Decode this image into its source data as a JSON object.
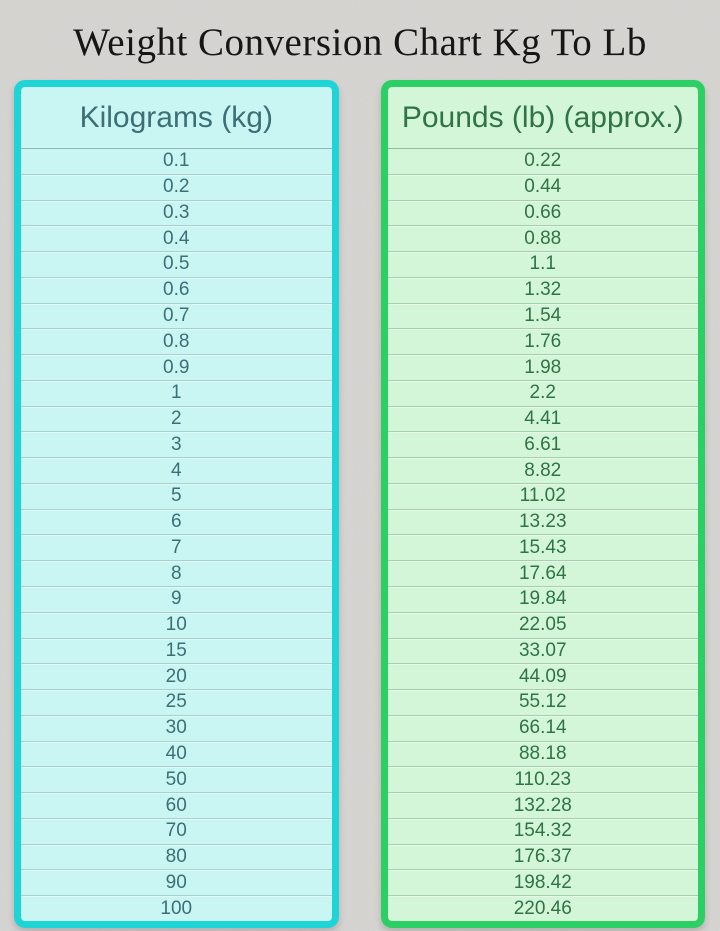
{
  "title": "Weight Conversion Chart Kg To Lb",
  "colors": {
    "page_background": "#d8d6d3",
    "title_text": "#161616",
    "kg_border": "#1fd4d6",
    "kg_background": "#c9f6f3",
    "kg_text": "#3c7076",
    "lb_border": "#2bcf63",
    "lb_background": "#d3f6d9",
    "lb_text": "#2f7347"
  },
  "chart_data": {
    "type": "table",
    "title": "Weight Conversion Chart Kg To Lb",
    "columns": [
      "Kilograms (kg)",
      "Pounds (lb) (approx.)"
    ],
    "series": [
      {
        "name": "Kilograms (kg)",
        "values": [
          "0.1",
          "0.2",
          "0.3",
          "0.4",
          "0.5",
          "0.6",
          "0.7",
          "0.8",
          "0.9",
          "1",
          "2",
          "3",
          "4",
          "5",
          "6",
          "7",
          "8",
          "9",
          "10",
          "15",
          "20",
          "25",
          "30",
          "40",
          "50",
          "60",
          "70",
          "80",
          "90",
          "100"
        ]
      },
      {
        "name": "Pounds (lb) (approx.)",
        "values": [
          "0.22",
          "0.44",
          "0.66",
          "0.88",
          "1.1",
          "1.32",
          "1.54",
          "1.76",
          "1.98",
          "2.2",
          "4.41",
          "6.61",
          "8.82",
          "11.02",
          "13.23",
          "15.43",
          "17.64",
          "19.84",
          "22.05",
          "33.07",
          "44.09",
          "55.12",
          "66.14",
          "88.18",
          "110.23",
          "132.28",
          "154.32",
          "176.37",
          "198.42",
          "220.46"
        ]
      }
    ],
    "rows": [
      [
        "0.1",
        "0.22"
      ],
      [
        "0.2",
        "0.44"
      ],
      [
        "0.3",
        "0.66"
      ],
      [
        "0.4",
        "0.88"
      ],
      [
        "0.5",
        "1.1"
      ],
      [
        "0.6",
        "1.32"
      ],
      [
        "0.7",
        "1.54"
      ],
      [
        "0.8",
        "1.76"
      ],
      [
        "0.9",
        "1.98"
      ],
      [
        "1",
        "2.2"
      ],
      [
        "2",
        "4.41"
      ],
      [
        "3",
        "6.61"
      ],
      [
        "4",
        "8.82"
      ],
      [
        "5",
        "11.02"
      ],
      [
        "6",
        "13.23"
      ],
      [
        "7",
        "15.43"
      ],
      [
        "8",
        "17.64"
      ],
      [
        "9",
        "19.84"
      ],
      [
        "10",
        "22.05"
      ],
      [
        "15",
        "33.07"
      ],
      [
        "20",
        "44.09"
      ],
      [
        "25",
        "55.12"
      ],
      [
        "30",
        "66.14"
      ],
      [
        "40",
        "88.18"
      ],
      [
        "50",
        "110.23"
      ],
      [
        "60",
        "132.28"
      ],
      [
        "70",
        "154.32"
      ],
      [
        "80",
        "176.37"
      ],
      [
        "90",
        "198.42"
      ],
      [
        "100",
        "220.46"
      ]
    ]
  }
}
